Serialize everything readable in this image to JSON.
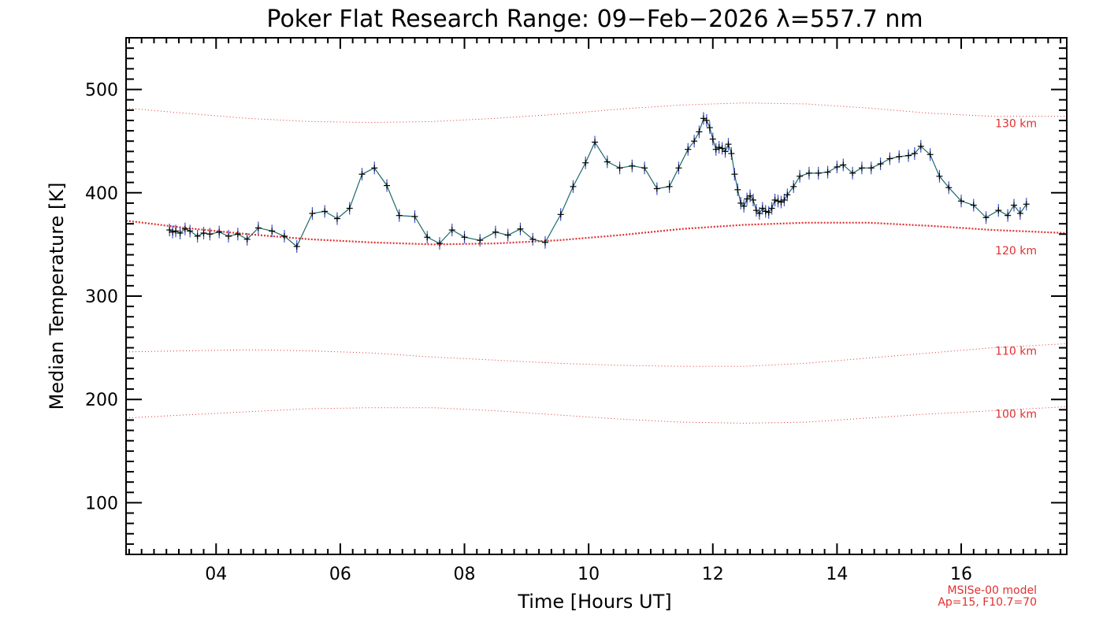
{
  "chart_data": {
    "type": "line",
    "title": "Poker Flat Research Range: 09−Feb−2026 λ=557.7 nm",
    "xlabel": "Time [Hours UT]",
    "ylabel": "Median Temperature [K]",
    "xlim": [
      2.55,
      17.7
    ],
    "ylim": [
      50,
      550
    ],
    "x_ticks": [
      4,
      6,
      8,
      10,
      12,
      14,
      16
    ],
    "x_tick_labels": [
      "04",
      "06",
      "08",
      "10",
      "12",
      "14",
      "16"
    ],
    "y_ticks": [
      100,
      200,
      300,
      400,
      500
    ],
    "y_tick_labels": [
      "100",
      "200",
      "300",
      "400",
      "500"
    ],
    "grid": false,
    "colors": {
      "data": "#1a2a8c",
      "line": "#1e6a6a",
      "model": "#e03030",
      "axes": "#000000"
    },
    "series": [
      {
        "x": [
          3.25,
          3.3,
          3.35,
          3.42,
          3.5,
          3.58,
          3.7,
          3.8,
          3.9,
          4.05,
          4.2,
          4.35,
          4.5,
          4.68,
          4.9,
          5.1,
          5.3,
          5.55,
          5.75,
          5.95,
          6.15,
          6.35,
          6.55,
          6.75,
          6.95,
          7.2,
          7.4,
          7.6,
          7.8,
          8.0,
          8.25,
          8.5,
          8.7,
          8.9,
          9.1,
          9.3,
          9.55,
          9.75,
          9.95,
          10.1,
          10.3,
          10.5,
          10.7,
          10.9,
          11.1,
          11.3,
          11.45,
          11.6,
          11.7,
          11.78,
          11.85,
          11.9,
          11.95,
          12.0,
          12.05,
          12.1,
          12.15,
          12.2,
          12.25,
          12.3,
          12.35,
          12.4,
          12.45,
          12.5,
          12.55,
          12.6,
          12.65,
          12.7,
          12.75,
          12.8,
          12.85,
          12.9,
          12.95,
          13.0,
          13.05,
          13.1,
          13.15,
          13.2,
          13.3,
          13.4,
          13.55,
          13.7,
          13.85,
          14.0,
          14.1,
          14.25,
          14.4,
          14.55,
          14.7,
          14.85,
          15.0,
          15.15,
          15.25,
          15.35,
          15.5,
          15.65,
          15.8,
          16.0,
          16.2,
          16.4,
          16.6,
          16.75,
          16.85,
          16.95,
          17.05
        ],
        "y": [
          364,
          362,
          363,
          361,
          365,
          363,
          358,
          361,
          360,
          362,
          358,
          360,
          355,
          366,
          363,
          358,
          348,
          380,
          382,
          375,
          385,
          418,
          424,
          407,
          378,
          377,
          357,
          351,
          364,
          357,
          354,
          362,
          359,
          365,
          355,
          352,
          379,
          406,
          429,
          449,
          430,
          424,
          426,
          424,
          404,
          406,
          424,
          442,
          450,
          459,
          472,
          470,
          463,
          452,
          442,
          444,
          443,
          440,
          447,
          438,
          418,
          403,
          390,
          387,
          394,
          397,
          393,
          383,
          380,
          385,
          382,
          381,
          385,
          393,
          392,
          391,
          393,
          398,
          406,
          416,
          419,
          419,
          420,
          425,
          427,
          419,
          424,
          424,
          428,
          433,
          435,
          436,
          438,
          445,
          437,
          416,
          405,
          392,
          388,
          376,
          383,
          378,
          388,
          380,
          389
        ]
      }
    ],
    "model": {
      "line1": "MSISe-00 model",
      "line2": "Ap=15, F10.7=70",
      "curves": [
        {
          "label": "130 km",
          "x": [
            2.55,
            3.5,
            4.5,
            5.5,
            6.5,
            7.5,
            8.5,
            9.5,
            10.5,
            11.5,
            12.5,
            13.5,
            14.5,
            15.5,
            16.5,
            17.7
          ],
          "y": [
            482,
            477,
            472,
            469,
            468,
            469,
            472,
            476,
            481,
            485,
            487,
            486,
            482,
            477,
            474,
            474
          ]
        },
        {
          "label": "120 km",
          "x": [
            2.55,
            3.5,
            4.5,
            5.5,
            6.5,
            7.5,
            8.5,
            9.5,
            10.5,
            11.5,
            12.5,
            13.5,
            14.5,
            15.5,
            16.5,
            17.7
          ],
          "y": [
            373,
            366,
            360,
            355,
            352,
            350,
            351,
            354,
            359,
            365,
            369,
            371,
            371,
            368,
            364,
            361
          ]
        },
        {
          "label": "110 km",
          "x": [
            2.55,
            3.5,
            4.5,
            5.5,
            6.5,
            7.5,
            8.5,
            9.5,
            10.5,
            11.5,
            12.5,
            13.5,
            14.5,
            15.5,
            16.5,
            17.7
          ],
          "y": [
            246,
            247,
            248,
            247,
            245,
            241,
            238,
            235,
            233,
            232,
            232,
            235,
            240,
            245,
            250,
            254
          ]
        },
        {
          "label": "100 km",
          "x": [
            2.55,
            3.5,
            4.5,
            5.5,
            6.5,
            7.5,
            8.5,
            9.5,
            10.5,
            11.5,
            12.5,
            13.5,
            14.5,
            15.5,
            16.5,
            17.7
          ],
          "y": [
            182,
            185,
            188,
            191,
            192,
            192,
            189,
            185,
            181,
            178,
            177,
            178,
            182,
            186,
            189,
            193
          ]
        }
      ]
    }
  }
}
